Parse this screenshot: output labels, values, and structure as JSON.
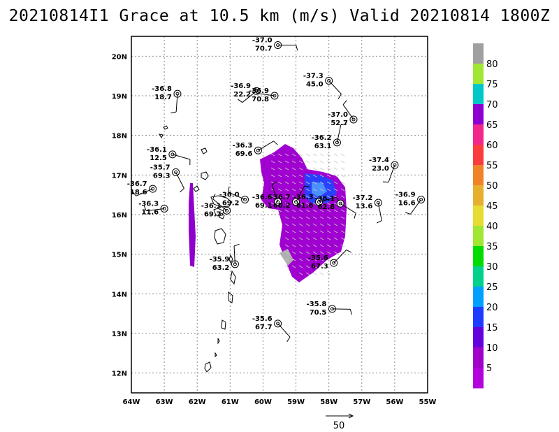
{
  "title": "20210814I1 Grace at 10.5 km (m/s) Valid 20210814 1800Z",
  "map": {
    "lon_range": [
      -64,
      -55
    ],
    "lat_range": [
      11.5,
      20.5
    ],
    "lon_ticks": [
      {
        "v": -64,
        "label": "64W"
      },
      {
        "v": -63,
        "label": "63W"
      },
      {
        "v": -62,
        "label": "62W"
      },
      {
        "v": -61,
        "label": "61W"
      },
      {
        "v": -60,
        "label": "60W"
      },
      {
        "v": -59,
        "label": "59W"
      },
      {
        "v": -58,
        "label": "58W"
      },
      {
        "v": -57,
        "label": "57W"
      },
      {
        "v": -56,
        "label": "56W"
      },
      {
        "v": -55,
        "label": "55W"
      }
    ],
    "lat_ticks": [
      {
        "v": 12,
        "label": "12N"
      },
      {
        "v": 13,
        "label": "13N"
      },
      {
        "v": 14,
        "label": "14N"
      },
      {
        "v": 15,
        "label": "15N"
      },
      {
        "v": 16,
        "label": "16N"
      },
      {
        "v": 17,
        "label": "17N"
      },
      {
        "v": 18,
        "label": "18N"
      },
      {
        "v": 19,
        "label": "19N"
      },
      {
        "v": 20,
        "label": "20N"
      }
    ],
    "grid": true
  },
  "stations": [
    {
      "lon": -59.55,
      "lat": 20.28,
      "t": "-37.0",
      "s": "70.7"
    },
    {
      "lon": -58.0,
      "lat": 19.38,
      "t": "-37.3",
      "s": "45.0"
    },
    {
      "lon": -62.6,
      "lat": 19.05,
      "t": "-36.8",
      "s": "18.7"
    },
    {
      "lon": -60.2,
      "lat": 19.12,
      "t": "-36.9",
      "s": "22.2"
    },
    {
      "lon": -59.65,
      "lat": 19.0,
      "t": "-36.9",
      "s": "70.8"
    },
    {
      "lon": -57.25,
      "lat": 18.4,
      "t": "-37.0",
      "s": "52.7"
    },
    {
      "lon": -57.75,
      "lat": 17.82,
      "t": "-36.2",
      "s": "63.1"
    },
    {
      "lon": -60.15,
      "lat": 17.62,
      "t": "-36.3",
      "s": "69.6"
    },
    {
      "lon": -62.75,
      "lat": 17.52,
      "t": "-36.1",
      "s": "12.5"
    },
    {
      "lon": -62.65,
      "lat": 17.07,
      "t": "-35.7",
      "s": "69.3"
    },
    {
      "lon": -56.0,
      "lat": 17.25,
      "t": "-37.4",
      "s": "23.0"
    },
    {
      "lon": -63.35,
      "lat": 16.65,
      "t": "-36.7",
      "s": "18.6"
    },
    {
      "lon": -60.55,
      "lat": 16.38,
      "t": "-36.0",
      "s": "69.2"
    },
    {
      "lon": -59.55,
      "lat": 16.32,
      "t": "-36.6",
      "s": "69.1"
    },
    {
      "lon": -59.0,
      "lat": 16.32,
      "t": "-36.7",
      "s": "60.2"
    },
    {
      "lon": -58.3,
      "lat": 16.32,
      "t": "-36.3",
      "s": "61.6"
    },
    {
      "lon": -57.65,
      "lat": 16.28,
      "t": "-36.1",
      "s": "62.8"
    },
    {
      "lon": -56.5,
      "lat": 16.3,
      "t": "-37.2",
      "s": "13.6"
    },
    {
      "lon": -55.2,
      "lat": 16.38,
      "t": "-36.9",
      "s": "16.6"
    },
    {
      "lon": -63.0,
      "lat": 16.15,
      "t": "-36.3",
      "s": "11.6"
    },
    {
      "lon": -61.1,
      "lat": 16.1,
      "t": "-36.1",
      "s": "69.7"
    },
    {
      "lon": -60.85,
      "lat": 14.75,
      "t": "-35.9",
      "s": "63.2"
    },
    {
      "lon": -57.85,
      "lat": 14.78,
      "t": "-35.6",
      "s": "67.3"
    },
    {
      "lon": -57.9,
      "lat": 13.62,
      "t": "-35.8",
      "s": "70.5"
    },
    {
      "lon": -59.55,
      "lat": 13.25,
      "t": "-35.6",
      "s": "67.7"
    }
  ],
  "colorbar": {
    "labels": [
      "80",
      "75",
      "70",
      "65",
      "60",
      "55",
      "50",
      "45",
      "40",
      "35",
      "30",
      "25",
      "20",
      "15",
      "10",
      "5"
    ],
    "colors": [
      "#a0a0a0",
      "#a0e632",
      "#00c8c8",
      "#8c00d2",
      "#f0288c",
      "#fa3c3c",
      "#f08228",
      "#e6af2d",
      "#e6dc32",
      "#a0e632",
      "#00dc00",
      "#00d28c",
      "#00a0ff",
      "#1e3cff",
      "#6400dc",
      "#a000c8",
      "#b400dc"
    ]
  },
  "scale_arrow": {
    "label": "50"
  }
}
